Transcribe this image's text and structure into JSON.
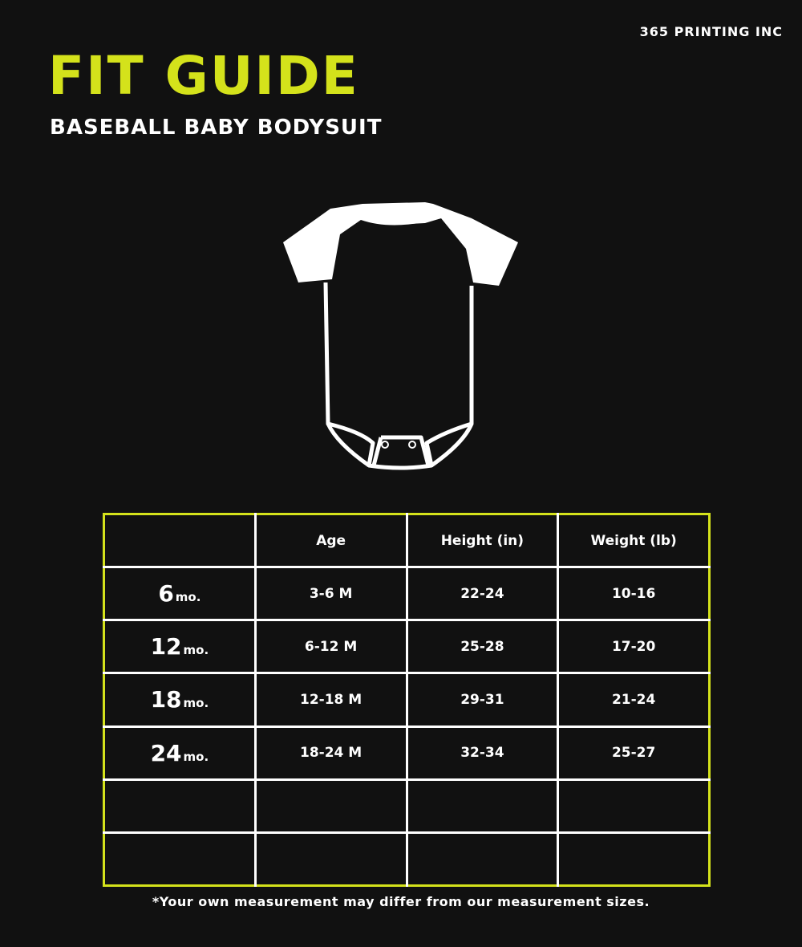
{
  "brand": "365 PRINTING INC",
  "title": "FIT GUIDE",
  "subtitle": "BASEBALL BABY BODYSUIT",
  "colors": {
    "accent": "#d4e21b",
    "background": "#111111",
    "text": "#ffffff"
  },
  "illustration": "baseball-bodysuit-outline",
  "table": {
    "headers": [
      "",
      "Age",
      "Height (in)",
      "Weight (lb)"
    ],
    "rows": [
      {
        "size": "6",
        "unit": "mo.",
        "age": "3-6 M",
        "height": "22-24",
        "weight": "10-16"
      },
      {
        "size": "12",
        "unit": "mo.",
        "age": "6-12 M",
        "height": "25-28",
        "weight": "17-20"
      },
      {
        "size": "18",
        "unit": "mo.",
        "age": "12-18 M",
        "height": "29-31",
        "weight": "21-24"
      },
      {
        "size": "24",
        "unit": "mo.",
        "age": "18-24 M",
        "height": "32-34",
        "weight": "25-27"
      }
    ]
  },
  "footnote": "*Your own measurement may differ from our measurement sizes."
}
